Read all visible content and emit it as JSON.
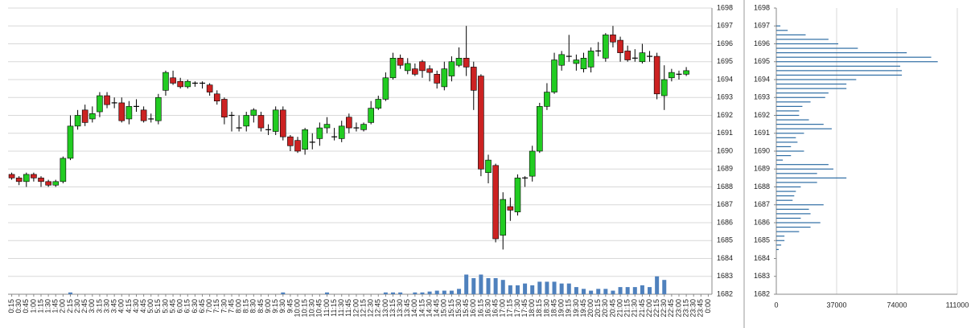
{
  "chart_data": [
    {
      "type": "candlestick",
      "categories": [
        "0:15",
        "0:30",
        "0:45",
        "1:00",
        "1:15",
        "1:30",
        "1:45",
        "2:00",
        "2:15",
        "2:30",
        "2:45",
        "3:00",
        "3:15",
        "3:30",
        "3:45",
        "4:00",
        "4:15",
        "4:30",
        "4:45",
        "5:00",
        "5:15",
        "5:30",
        "5:45",
        "6:00",
        "6:15",
        "6:30",
        "6:45",
        "7:00",
        "7:15",
        "7:30",
        "7:45",
        "8:00",
        "8:15",
        "8:30",
        "8:45",
        "9:00",
        "9:15",
        "9:30",
        "9:45",
        "10:00",
        "10:15",
        "10:30",
        "10:45",
        "11:00",
        "11:15",
        "11:30",
        "11:45",
        "12:00",
        "12:15",
        "12:30",
        "12:45",
        "13:00",
        "13:15",
        "13:30",
        "13:45",
        "14:00",
        "14:15",
        "14:30",
        "14:45",
        "15:00",
        "15:15",
        "15:30",
        "15:45",
        "16:00",
        "16:15",
        "16:30",
        "16:45",
        "17:00",
        "17:15",
        "17:30",
        "17:45",
        "18:00",
        "18:15",
        "18:30",
        "18:45",
        "19:00",
        "19:15",
        "19:30",
        "19:45",
        "20:00",
        "20:15",
        "20:30",
        "20:45",
        "21:00",
        "21:15",
        "21:30",
        "21:45",
        "22:00",
        "22:15",
        "22:30",
        "22:45",
        "23:00",
        "23:15",
        "23:30",
        "23:45",
        "0:00"
      ],
      "open": [
        1688.7,
        1688.5,
        1688.3,
        1688.7,
        1688.5,
        1688.3,
        1688.1,
        1688.3,
        1689.6,
        1691.4,
        1692.3,
        1691.8,
        1692.2,
        1693.1,
        1692.7,
        1692.7,
        1691.8,
        1692.5,
        1692.3,
        1691.8,
        1691.7,
        1693.4,
        1694.1,
        1693.9,
        1693.6,
        1693.8,
        1693.8,
        1693.7,
        1693.2,
        1692.9,
        1692.0,
        1691.3,
        1691.4,
        1692.0,
        1692.0,
        1691.2,
        1691.1,
        1692.3,
        1690.8,
        1690.6,
        1690.1,
        1690.5,
        1690.7,
        1691.3,
        1690.8,
        1690.7,
        1691.9,
        1691.3,
        1691.2,
        1691.6,
        1692.4,
        1692.9,
        1694.1,
        1695.2,
        1694.5,
        1694.6,
        1695.0,
        1694.6,
        1694.3,
        1693.6,
        1694.2,
        1694.8,
        1695.2,
        1694.7,
        1694.2,
        1688.8,
        1689.2,
        1685.3,
        1686.9,
        1686.6,
        1688.5,
        1688.6,
        1690.0,
        1692.5,
        1693.3,
        1694.8,
        1695.3,
        1694.9,
        1694.6,
        1694.7,
        1695.6,
        1695.2,
        1696.5,
        1696.2,
        1695.6,
        1695.2,
        1695.0,
        1695.3,
        1695.3,
        1693.1,
        1694.1,
        1694.3,
        1694.3,
        null,
        null,
        null
      ],
      "high": [
        1688.8,
        1688.6,
        1688.8,
        1688.8,
        1688.6,
        1688.4,
        1688.4,
        1689.7,
        1692.0,
        1692.3,
        1692.6,
        1692.5,
        1693.3,
        1693.3,
        1693.0,
        1693.0,
        1692.8,
        1692.9,
        1692.5,
        1692.1,
        1693.2,
        1694.5,
        1694.5,
        1694.1,
        1694.0,
        1693.9,
        1693.9,
        1693.8,
        1693.4,
        1693.0,
        1692.2,
        1692.0,
        1692.2,
        1692.4,
        1692.2,
        1691.5,
        1692.5,
        1692.5,
        1690.9,
        1690.8,
        1691.3,
        1691.0,
        1691.6,
        1691.9,
        1691.3,
        1691.7,
        1692.1,
        1691.6,
        1691.6,
        1692.8,
        1693.1,
        1694.4,
        1695.5,
        1695.4,
        1695.2,
        1694.9,
        1695.1,
        1694.8,
        1694.5,
        1695.0,
        1695.3,
        1695.8,
        1697.0,
        1695.0,
        1694.3,
        1689.8,
        1689.3,
        1687.7,
        1687.4,
        1688.7,
        1688.6,
        1690.3,
        1692.7,
        1693.8,
        1695.5,
        1695.6,
        1696.5,
        1695.4,
        1695.5,
        1695.8,
        1696.1,
        1696.6,
        1697.0,
        1696.4,
        1695.9,
        1695.7,
        1696.0,
        1695.6,
        1695.5,
        1694.8,
        1694.6,
        1694.5,
        1694.7,
        null,
        null,
        null
      ],
      "low": [
        1688.4,
        1688.1,
        1688.0,
        1688.3,
        1688.0,
        1688.0,
        1688.0,
        1688.2,
        1689.5,
        1691.2,
        1691.4,
        1691.6,
        1691.9,
        1692.4,
        1692.4,
        1691.6,
        1691.5,
        1692.2,
        1691.6,
        1691.6,
        1691.5,
        1693.1,
        1693.7,
        1693.5,
        1693.5,
        1693.6,
        1693.5,
        1693.1,
        1692.6,
        1691.5,
        1691.1,
        1691.1,
        1691.1,
        1691.6,
        1691.1,
        1690.9,
        1690.9,
        1690.6,
        1690.0,
        1689.9,
        1689.8,
        1690.1,
        1690.3,
        1691.0,
        1690.6,
        1690.5,
        1691.0,
        1691.1,
        1691.1,
        1691.5,
        1692.3,
        1692.8,
        1694.0,
        1694.6,
        1694.3,
        1694.2,
        1694.1,
        1693.9,
        1693.5,
        1693.4,
        1693.9,
        1694.7,
        1694.2,
        1692.3,
        1688.6,
        1688.2,
        1684.9,
        1684.5,
        1686.1,
        1686.4,
        1688.0,
        1688.3,
        1689.9,
        1692.3,
        1693.2,
        1694.5,
        1695.0,
        1694.5,
        1694.4,
        1694.4,
        1695.3,
        1695.0,
        1695.8,
        1695.0,
        1695.0,
        1695.0,
        1694.9,
        1695.0,
        1692.9,
        1692.3,
        1693.9,
        1694.0,
        1694.2,
        null,
        null,
        null
      ],
      "close": [
        1688.5,
        1688.3,
        1688.7,
        1688.5,
        1688.3,
        1688.1,
        1688.3,
        1689.6,
        1691.4,
        1692.0,
        1691.6,
        1692.1,
        1693.1,
        1692.6,
        1692.7,
        1691.7,
        1692.5,
        1692.5,
        1691.7,
        1691.8,
        1693.0,
        1694.4,
        1693.8,
        1693.6,
        1693.9,
        1693.8,
        1693.8,
        1693.3,
        1692.8,
        1691.9,
        1692.0,
        1691.3,
        1692.0,
        1692.3,
        1691.3,
        1691.2,
        1692.3,
        1690.8,
        1690.3,
        1690.0,
        1691.2,
        1690.5,
        1691.3,
        1691.5,
        1690.8,
        1691.4,
        1691.3,
        1691.3,
        1691.5,
        1692.4,
        1692.9,
        1694.1,
        1695.2,
        1694.8,
        1694.9,
        1694.3,
        1694.5,
        1694.4,
        1693.8,
        1694.6,
        1695.0,
        1695.2,
        1694.7,
        1693.4,
        1689.0,
        1689.5,
        1685.1,
        1687.3,
        1686.7,
        1688.5,
        1688.5,
        1690.0,
        1692.5,
        1693.3,
        1695.1,
        1695.4,
        1695.3,
        1695.1,
        1695.2,
        1695.6,
        1695.6,
        1696.5,
        1696.1,
        1695.5,
        1695.1,
        1695.2,
        1695.5,
        1695.3,
        1693.2,
        1694.0,
        1694.4,
        1694.3,
        1694.5,
        null,
        null,
        null
      ],
      "volume": [
        null,
        null,
        null,
        null,
        null,
        null,
        null,
        null,
        1682.1,
        null,
        null,
        null,
        null,
        null,
        null,
        null,
        null,
        null,
        null,
        null,
        null,
        null,
        null,
        null,
        null,
        null,
        null,
        null,
        null,
        null,
        null,
        null,
        null,
        null,
        null,
        null,
        null,
        1682.1,
        null,
        null,
        null,
        null,
        null,
        1682.1,
        null,
        null,
        null,
        null,
        null,
        null,
        null,
        1682.1,
        1682.1,
        1682.1,
        null,
        1682.1,
        1682.1,
        1682.15,
        1682.2,
        1682.2,
        1682.2,
        1682.3,
        1683.1,
        1682.9,
        1683.1,
        1682.9,
        1682.9,
        1682.8,
        1682.5,
        1682.5,
        1682.6,
        1682.5,
        1682.7,
        1682.7,
        1682.7,
        1682.6,
        1682.6,
        1682.4,
        1682.3,
        1682.2,
        1682.3,
        1682.3,
        1682.2,
        1682.4,
        1682.4,
        1682.4,
        1682.5,
        1682.4,
        1683.0,
        1682.8,
        null,
        null,
        null,
        null,
        null,
        null
      ],
      "up_color": "#22cc22",
      "down_color": "#cc2222",
      "volume_color": "#4f81bd",
      "ylim": [
        1682,
        1698
      ],
      "yticks": [
        1682,
        1683,
        1684,
        1685,
        1686,
        1687,
        1688,
        1689,
        1690,
        1691,
        1692,
        1693,
        1694,
        1695,
        1696,
        1697,
        1698
      ],
      "grid": true
    },
    {
      "type": "bar",
      "orientation": "horizontal",
      "color": "#2e6da4",
      "y": [
        1697,
        1696.75,
        1696.5,
        1696.25,
        1696,
        1695.75,
        1695.5,
        1695.25,
        1695,
        1694.75,
        1694.5,
        1694.25,
        1694,
        1693.75,
        1693.5,
        1693.25,
        1693,
        1692.75,
        1692.5,
        1692.25,
        1692,
        1691.75,
        1691.5,
        1691.25,
        1691,
        1690.75,
        1690.5,
        1690.25,
        1690,
        1689.75,
        1689.5,
        1689.25,
        1689,
        1688.75,
        1688.5,
        1688.25,
        1688,
        1687.75,
        1687.5,
        1687.25,
        1687,
        1686.75,
        1686.5,
        1686.25,
        1686,
        1685.75,
        1685.5,
        1685.25,
        1685,
        1684.75,
        1684.5
      ],
      "values": [
        2500,
        7000,
        18000,
        32000,
        38000,
        50000,
        80000,
        95000,
        99000,
        76000,
        77000,
        77000,
        49000,
        43000,
        43000,
        32000,
        30000,
        21000,
        16000,
        14000,
        14000,
        20000,
        29000,
        34000,
        17000,
        12000,
        13000,
        9000,
        17000,
        9000,
        4000,
        32000,
        35000,
        25000,
        43000,
        25000,
        15000,
        12000,
        11000,
        10000,
        29000,
        20000,
        21000,
        15000,
        27000,
        21000,
        14000,
        5000,
        5000,
        3000,
        1500
      ],
      "xlim": [
        0,
        111000
      ],
      "xticks": [
        0,
        37000,
        74000,
        111000
      ],
      "ylim": [
        1682,
        1698
      ],
      "yticks": [
        1682,
        1683,
        1684,
        1685,
        1686,
        1687,
        1688,
        1689,
        1690,
        1691,
        1692,
        1693,
        1694,
        1695,
        1696,
        1697,
        1698
      ],
      "grid": true
    }
  ]
}
